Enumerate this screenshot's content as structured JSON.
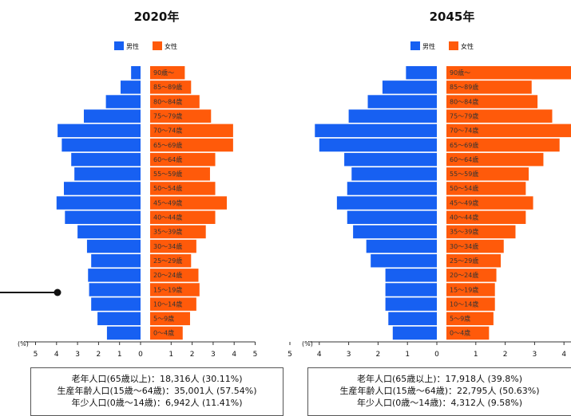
{
  "colors": {
    "male": "#1760f2",
    "female": "#ff5a0a",
    "axis": "#333333",
    "text": "#111111"
  },
  "chart_data": [
    {
      "type": "bar",
      "orientation": "horizontal",
      "title": "2020年",
      "legend": {
        "placement": "top",
        "items": [
          "男性",
          "女性"
        ]
      },
      "axis_unit": "(%)",
      "x_ticks_left": [
        "5",
        "4",
        "3",
        "2",
        "1",
        "0"
      ],
      "x_ticks_right": [
        "1",
        "2",
        "3",
        "4",
        "5"
      ],
      "xlim": [
        -5,
        5
      ],
      "categories": [
        "90歳〜",
        "85〜89歳",
        "80〜84歳",
        "75〜79歳",
        "70〜74歳",
        "65〜69歳",
        "60〜64歳",
        "55〜59歳",
        "50〜54歳",
        "45〜49歳",
        "40〜44歳",
        "35〜39歳",
        "30〜34歳",
        "25〜29歳",
        "20〜24歳",
        "15〜19歳",
        "10〜14歳",
        "5〜9歳",
        "0〜4歳"
      ],
      "series": [
        {
          "name": "男性",
          "values": [
            0.45,
            0.95,
            1.65,
            2.7,
            3.95,
            3.75,
            3.3,
            3.15,
            3.65,
            4.0,
            3.6,
            3.0,
            2.55,
            2.35,
            2.5,
            2.45,
            2.35,
            2.05,
            1.6
          ]
        },
        {
          "name": "女性",
          "values": [
            1.65,
            1.95,
            2.35,
            2.9,
            3.95,
            3.95,
            3.1,
            2.85,
            3.1,
            3.65,
            3.1,
            2.65,
            2.2,
            1.95,
            2.3,
            2.35,
            2.2,
            1.9,
            1.55
          ]
        }
      ],
      "summary": [
        "老年人口(65歳以上)：18,316人 (30.11%)",
        "生産年齢人口(15歳〜64歳)：35,001人 (57.54%)",
        "年少人口(0歳〜14歳)：6,942人 (11.41%)"
      ]
    },
    {
      "type": "bar",
      "orientation": "horizontal",
      "title": "2045年",
      "legend": {
        "placement": "top",
        "items": [
          "男性",
          "女性"
        ]
      },
      "axis_unit": "(%)",
      "x_ticks_left": [
        "5",
        "4",
        "3",
        "2",
        "1",
        "0"
      ],
      "x_ticks_right": [
        "1",
        "2",
        "3",
        "4"
      ],
      "xlim": [
        -5,
        5
      ],
      "categories": [
        "90歳〜",
        "85〜89歳",
        "80〜84歳",
        "75〜79歳",
        "70〜74歳",
        "65〜69歳",
        "60〜64歳",
        "55〜59歳",
        "50〜54歳",
        "45〜49歳",
        "40〜44歳",
        "35〜39歳",
        "30〜34歳",
        "25〜29歳",
        "20〜24歳",
        "15〜19歳",
        "10〜14歳",
        "5〜9歳",
        "0〜4歳"
      ],
      "series": [
        {
          "name": "男性",
          "values": [
            1.05,
            1.85,
            2.35,
            3.0,
            4.15,
            4.0,
            3.15,
            2.9,
            3.05,
            3.4,
            3.05,
            2.85,
            2.4,
            2.25,
            1.75,
            1.75,
            1.75,
            1.65,
            1.5
          ]
        },
        {
          "name": "女性",
          "values": [
            4.55,
            2.9,
            3.1,
            3.6,
            4.45,
            3.85,
            3.3,
            2.8,
            2.7,
            2.95,
            2.7,
            2.35,
            1.95,
            1.85,
            1.7,
            1.65,
            1.65,
            1.6,
            1.45
          ]
        }
      ],
      "summary": [
        "老年人口(65歳以上)：17,918人 (39.8%)",
        "生産年齢人口(15歳〜64歳)：22,795人 (50.63%)",
        "年少人口(0歳〜14歳)：4,312人 (9.58%)"
      ]
    }
  ]
}
